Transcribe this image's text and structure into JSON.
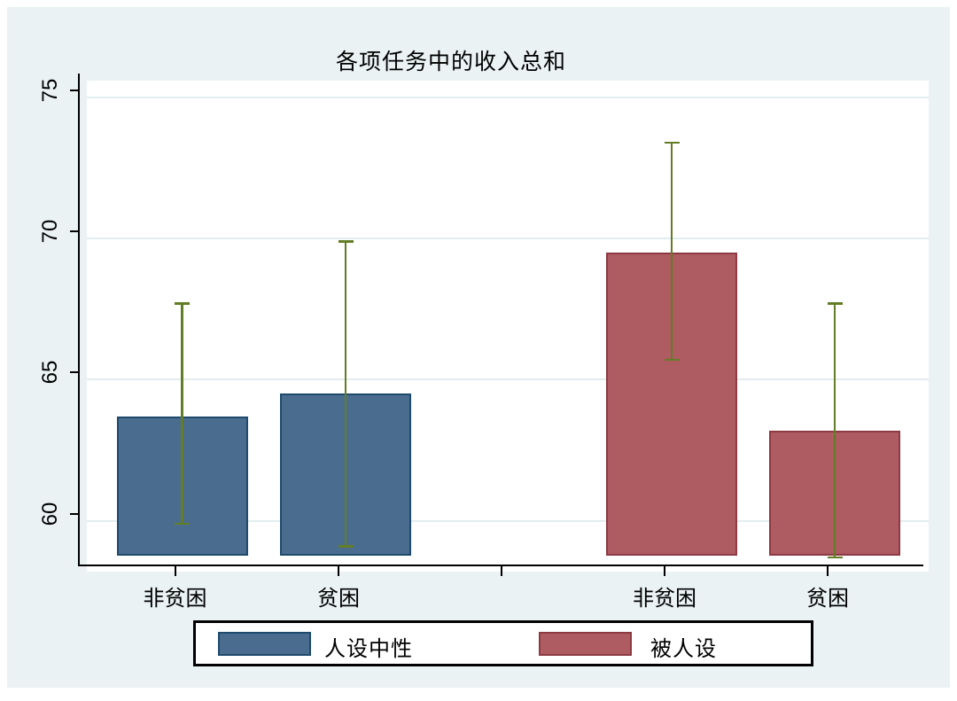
{
  "figure": {
    "canvas_color": "#eaf2f3",
    "plot_color": "#ffffff",
    "grid_color": "#e3edef",
    "axis_color": "#000000"
  },
  "chart_data": {
    "type": "bar",
    "title": "各项任务中的收入总和",
    "xlabel": "",
    "ylabel": "",
    "categories": [
      "非贫困",
      "贫困"
    ],
    "series": [
      {
        "name": "人设中性",
        "fill": "#4a6d8f",
        "border": "#1e4a6d",
        "values": [
          63.7,
          64.5
        ],
        "ci_low": [
          59.9,
          59.1
        ],
        "ci_high": [
          67.7,
          69.9
        ]
      },
      {
        "name": "被人设",
        "fill": "#ae5b62",
        "border": "#8d3a43",
        "values": [
          69.5,
          63.2
        ],
        "ci_low": [
          65.7,
          58.7
        ],
        "ci_high": [
          73.4,
          67.7
        ]
      }
    ],
    "error_bar_color": "#637d26",
    "yticks": [
      60,
      65,
      70,
      75
    ],
    "ylim": [
      58.2,
      75.6
    ],
    "bar_base": 58.75,
    "grid": true,
    "legend_position": "bottom"
  },
  "legend": {
    "items": [
      {
        "label": "人设中性"
      },
      {
        "label": "被人设"
      }
    ]
  }
}
